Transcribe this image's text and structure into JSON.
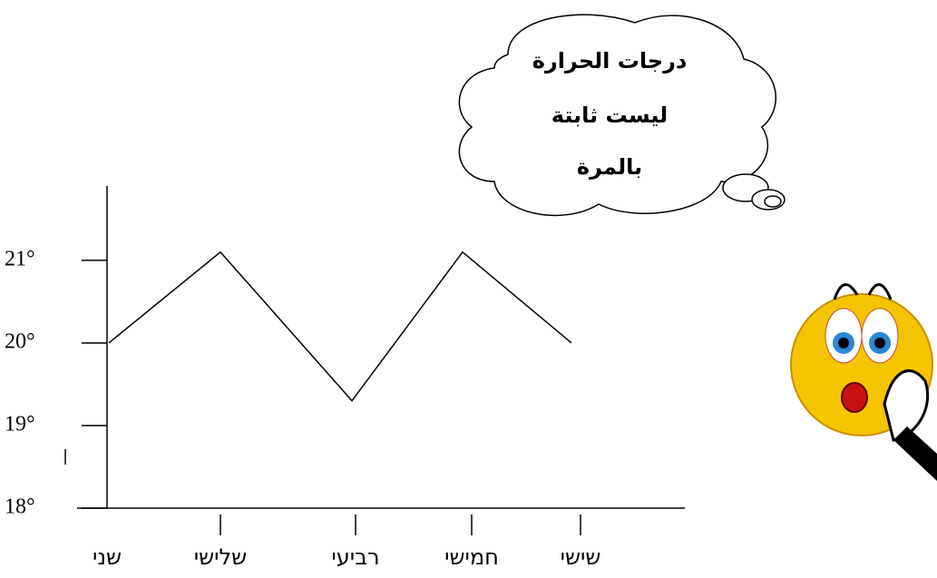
{
  "chart_data": {
    "type": "line",
    "categories": [
      "שני",
      "שלישי",
      "רביעי",
      "חמישי",
      "שישי"
    ],
    "values": [
      20,
      21.1,
      19.3,
      21.1,
      20
    ],
    "color": "#000000",
    "ylim": [
      18,
      21.9
    ],
    "yticks": [
      {
        "value": 18,
        "label": "18°"
      },
      {
        "value": 19,
        "label": "19°"
      },
      {
        "value": 20,
        "label": "20°"
      },
      {
        "value": 21,
        "label": "21°"
      }
    ],
    "annotation": [
      "درجات الحرارة",
      "ليست ثابتة",
      "بالمرة"
    ]
  }
}
